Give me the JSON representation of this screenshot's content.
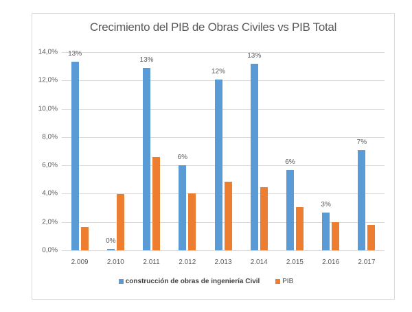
{
  "chart_data": {
    "type": "bar",
    "title": "Crecimiento del PIB de Obras Civiles vs PIB Total",
    "xlabel": "",
    "ylabel": "",
    "categories": [
      "2.009",
      "2.010",
      "2.011",
      "2.012",
      "2.013",
      "2.014",
      "2.015",
      "2.016",
      "2.017"
    ],
    "series": [
      {
        "name": "construcción de obras de ingeniería Civil",
        "color": "#5b9bd5",
        "values": [
          13.3,
          0.1,
          12.9,
          6.0,
          12.05,
          13.2,
          5.65,
          2.65,
          7.05
        ],
        "data_labels": [
          "13%",
          "0%",
          "13%",
          "6%",
          "12%",
          "13%",
          "6%",
          "3%",
          "7%"
        ]
      },
      {
        "name": "PIB",
        "color": "#ed7d31",
        "values": [
          1.65,
          3.95,
          6.6,
          4.0,
          4.85,
          4.45,
          3.05,
          2.0,
          1.8
        ]
      }
    ],
    "ylim": [
      0,
      14
    ],
    "yticks": [
      "0,0%",
      "2,0%",
      "4,0%",
      "6,0%",
      "8,0%",
      "10,0%",
      "12,0%",
      "14,0%"
    ],
    "grid": true,
    "legend_position": "bottom"
  }
}
